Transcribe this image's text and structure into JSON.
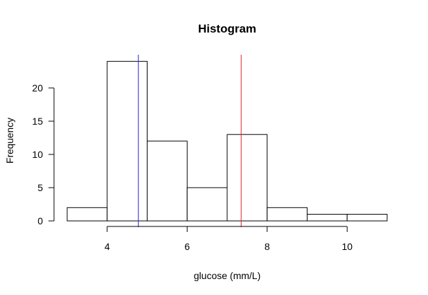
{
  "chart_data": {
    "type": "bar",
    "subtype": "histogram",
    "title": "Histogram",
    "xlabel": "glucose (mm/L)",
    "ylabel": "Frequency",
    "bins": [
      {
        "start": 3,
        "end": 4,
        "count": 2
      },
      {
        "start": 4,
        "end": 5,
        "count": 24
      },
      {
        "start": 5,
        "end": 6,
        "count": 12
      },
      {
        "start": 6,
        "end": 7,
        "count": 5
      },
      {
        "start": 7,
        "end": 8,
        "count": 13
      },
      {
        "start": 8,
        "end": 9,
        "count": 2
      },
      {
        "start": 9,
        "end": 10,
        "count": 1
      },
      {
        "start": 10,
        "end": 11,
        "count": 1
      }
    ],
    "x_axis": {
      "ticks": [
        4,
        6,
        8,
        10
      ],
      "range": [
        3,
        11
      ]
    },
    "y_axis": {
      "ticks": [
        0,
        5,
        10,
        15,
        20
      ],
      "range": [
        0,
        25
      ]
    },
    "reference_lines": [
      {
        "x": 4.78,
        "color": "#2222cc"
      },
      {
        "x": 7.35,
        "color": "#dd2222"
      }
    ],
    "grid": false,
    "legend": "none",
    "bar_fill": "#ffffff",
    "bar_stroke": "#000000"
  }
}
